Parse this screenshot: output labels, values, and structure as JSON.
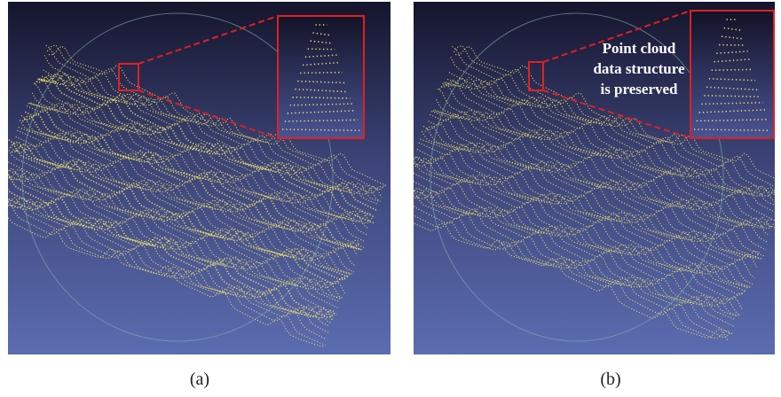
{
  "panels": [
    {
      "caption": "(a)"
    },
    {
      "caption": "(b)",
      "annotation": [
        "Point cloud",
        "data structure",
        "is preserved"
      ]
    }
  ]
}
